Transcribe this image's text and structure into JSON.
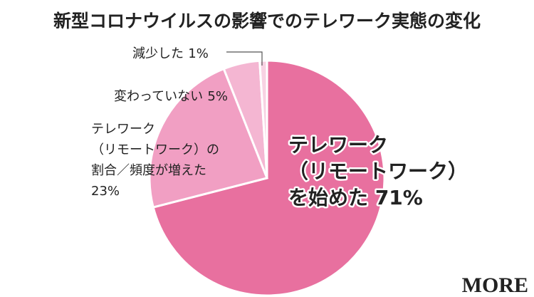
{
  "chart_data": {
    "type": "pie",
    "title": "新型コロナウイルスの影響でのテレワーク実態の変化",
    "categories": [
      [
        "テレワーク",
        "（リモートワーク）",
        "を始めた"
      ],
      [
        "テレワーク",
        "（リモートワーク）の",
        "割合／頻度が増えた"
      ],
      [
        "変わっていない"
      ],
      [
        "減少した"
      ]
    ],
    "values": [
      71,
      23,
      5,
      1
    ],
    "value_labels": [
      "71%",
      "23%",
      "5%",
      "1%"
    ],
    "colors": [
      "#e8709f",
      "#f19fc3",
      "#f4b6d2",
      "#f8d2e3"
    ],
    "logo": "MORE"
  }
}
